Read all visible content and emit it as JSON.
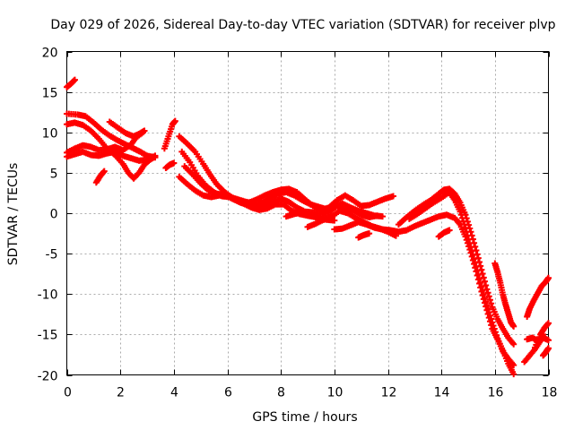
{
  "chart_data": {
    "type": "scatter",
    "title": "Day 029 of 2026, Sidereal Day-to-day VTEC variation (SDTVAR) for receiver plvp",
    "xlabel": "GPS time / hours",
    "ylabel": "SDTVAR / TECUs",
    "xlim": [
      0,
      18
    ],
    "ylim": [
      -20,
      20
    ],
    "xticks": [
      0,
      2,
      4,
      6,
      8,
      10,
      12,
      14,
      16,
      18
    ],
    "yticks": [
      -20,
      -15,
      -10,
      -5,
      0,
      5,
      10,
      15,
      20
    ],
    "grid": true,
    "marker": "+",
    "colors": {
      "series": "#ff0000",
      "axis": "#000000",
      "grid": "#aaaaaa"
    },
    "series": [
      {
        "name": "trace-1",
        "points": [
          [
            0.0,
            15.6
          ],
          [
            0.15,
            16.0
          ],
          [
            0.3,
            16.5
          ]
        ]
      },
      {
        "name": "trace-2",
        "points": [
          [
            0.0,
            12.3
          ],
          [
            0.4,
            12.2
          ],
          [
            0.7,
            12.0
          ],
          [
            1.0,
            11.2
          ],
          [
            1.3,
            10.3
          ],
          [
            1.6,
            9.6
          ],
          [
            1.9,
            9.0
          ],
          [
            2.2,
            8.5
          ],
          [
            2.5,
            8.0
          ],
          [
            2.75,
            7.6
          ],
          [
            3.0,
            7.1
          ],
          [
            3.3,
            6.9
          ]
        ]
      },
      {
        "name": "trace-3",
        "points": [
          [
            0.0,
            11.0
          ],
          [
            0.3,
            11.2
          ],
          [
            0.6,
            10.9
          ],
          [
            0.9,
            10.2
          ],
          [
            1.2,
            9.2
          ],
          [
            1.5,
            8.0
          ],
          [
            1.8,
            7.2
          ],
          [
            2.1,
            6.1
          ],
          [
            2.3,
            5.0
          ],
          [
            2.5,
            4.3
          ],
          [
            2.7,
            5.0
          ],
          [
            2.9,
            6.0
          ],
          [
            3.1,
            6.6
          ],
          [
            3.3,
            7.0
          ]
        ]
      },
      {
        "name": "trace-4",
        "points": [
          [
            0.0,
            7.5
          ],
          [
            0.3,
            8.0
          ],
          [
            0.6,
            8.4
          ],
          [
            0.9,
            8.2
          ],
          [
            1.2,
            7.8
          ],
          [
            1.5,
            7.9
          ],
          [
            1.8,
            8.2
          ],
          [
            2.1,
            7.8
          ],
          [
            2.4,
            8.5
          ],
          [
            2.6,
            9.4
          ],
          [
            2.85,
            10.0
          ]
        ]
      },
      {
        "name": "trace-5",
        "points": [
          [
            0.0,
            7.0
          ],
          [
            0.3,
            7.3
          ],
          [
            0.6,
            7.6
          ],
          [
            0.9,
            7.2
          ],
          [
            1.2,
            7.1
          ],
          [
            1.5,
            7.4
          ],
          [
            1.8,
            7.6
          ],
          [
            2.1,
            7.1
          ],
          [
            2.4,
            6.8
          ],
          [
            2.7,
            6.5
          ],
          [
            3.0,
            6.6
          ],
          [
            3.3,
            7.1
          ]
        ]
      },
      {
        "name": "trace-6",
        "points": [
          [
            1.6,
            11.3
          ],
          [
            1.9,
            10.6
          ],
          [
            2.2,
            9.9
          ],
          [
            2.5,
            9.5
          ],
          [
            2.7,
            9.8
          ],
          [
            2.9,
            10.2
          ]
        ]
      },
      {
        "name": "trace-7",
        "points": [
          [
            1.1,
            3.8
          ],
          [
            1.25,
            4.6
          ],
          [
            1.4,
            5.2
          ]
        ]
      },
      {
        "name": "trace-8",
        "points": [
          [
            3.65,
            8.0
          ],
          [
            3.8,
            9.5
          ],
          [
            3.95,
            11.0
          ],
          [
            4.05,
            11.4
          ]
        ]
      },
      {
        "name": "trace-9",
        "points": [
          [
            3.7,
            5.6
          ],
          [
            3.85,
            6.0
          ],
          [
            4.0,
            6.2
          ]
        ]
      },
      {
        "name": "trace-10",
        "points": [
          [
            4.2,
            9.5
          ],
          [
            4.5,
            8.6
          ],
          [
            4.8,
            7.6
          ],
          [
            5.1,
            6.1
          ],
          [
            5.35,
            4.8
          ],
          [
            5.6,
            3.6
          ],
          [
            5.9,
            2.6
          ],
          [
            6.2,
            1.9
          ],
          [
            6.5,
            1.5
          ],
          [
            6.8,
            1.3
          ],
          [
            7.1,
            1.7
          ],
          [
            7.4,
            2.2
          ],
          [
            7.7,
            2.6
          ],
          [
            8.0,
            2.9
          ],
          [
            8.3,
            3.0
          ],
          [
            8.6,
            2.6
          ],
          [
            8.9,
            1.7
          ],
          [
            9.2,
            0.9
          ],
          [
            9.5,
            0.4
          ],
          [
            9.8,
            0.7
          ],
          [
            10.1,
            1.6
          ],
          [
            10.4,
            2.2
          ],
          [
            10.7,
            1.6
          ],
          [
            11.0,
            0.9
          ],
          [
            11.3,
            1.0
          ],
          [
            11.6,
            1.4
          ],
          [
            11.9,
            1.8
          ],
          [
            12.2,
            2.1
          ]
        ]
      },
      {
        "name": "trace-11",
        "points": [
          [
            4.3,
            7.6
          ],
          [
            4.6,
            6.3
          ],
          [
            4.9,
            4.6
          ],
          [
            5.2,
            3.4
          ],
          [
            5.5,
            2.6
          ],
          [
            5.8,
            2.1
          ],
          [
            6.1,
            2.0
          ],
          [
            6.4,
            1.7
          ],
          [
            6.7,
            1.4
          ],
          [
            7.0,
            1.2
          ],
          [
            7.3,
            1.3
          ],
          [
            7.6,
            1.9
          ],
          [
            7.9,
            2.4
          ],
          [
            8.2,
            2.6
          ],
          [
            8.5,
            2.2
          ],
          [
            8.8,
            1.6
          ],
          [
            9.1,
            1.1
          ],
          [
            9.4,
            0.8
          ],
          [
            9.7,
            0.5
          ],
          [
            10.0,
            0.8
          ],
          [
            10.3,
            1.2
          ],
          [
            10.6,
            0.7
          ],
          [
            10.9,
            0.3
          ],
          [
            11.2,
            0.0
          ],
          [
            11.5,
            -0.3
          ],
          [
            11.8,
            -0.4
          ]
        ]
      },
      {
        "name": "trace-12",
        "points": [
          [
            4.4,
            5.8
          ],
          [
            4.7,
            4.8
          ],
          [
            5.0,
            3.7
          ],
          [
            5.3,
            2.8
          ],
          [
            5.6,
            2.4
          ],
          [
            5.9,
            2.3
          ],
          [
            6.2,
            1.8
          ],
          [
            6.5,
            1.3
          ],
          [
            6.8,
            1.0
          ],
          [
            7.1,
            0.8
          ],
          [
            7.4,
            1.0
          ],
          [
            7.7,
            1.4
          ],
          [
            8.0,
            1.8
          ],
          [
            8.3,
            1.4
          ],
          [
            8.6,
            0.7
          ],
          [
            8.9,
            0.2
          ],
          [
            9.2,
            0.1
          ],
          [
            9.5,
            -0.1
          ],
          [
            9.8,
            0.1
          ],
          [
            10.1,
            0.9
          ],
          [
            10.4,
            0.7
          ],
          [
            10.7,
            0.3
          ],
          [
            11.0,
            -0.2
          ],
          [
            11.3,
            -0.5
          ],
          [
            11.6,
            -0.3
          ]
        ]
      },
      {
        "name": "trace-13",
        "points": [
          [
            4.2,
            4.5
          ],
          [
            4.5,
            3.6
          ],
          [
            4.8,
            2.8
          ],
          [
            5.1,
            2.2
          ],
          [
            5.4,
            2.0
          ],
          [
            5.7,
            2.2
          ],
          [
            6.0,
            2.1
          ],
          [
            6.3,
            1.6
          ],
          [
            6.6,
            1.2
          ],
          [
            6.9,
            0.7
          ],
          [
            7.2,
            0.4
          ],
          [
            7.5,
            0.6
          ],
          [
            7.8,
            1.1
          ],
          [
            8.1,
            1.1
          ],
          [
            8.4,
            0.3
          ],
          [
            8.7,
            -0.1
          ],
          [
            9.0,
            -0.3
          ],
          [
            9.3,
            -0.5
          ],
          [
            9.6,
            -0.8
          ],
          [
            9.9,
            -0.4
          ],
          [
            10.2,
            0.3
          ],
          [
            10.5,
            0.0
          ],
          [
            10.8,
            -0.6
          ],
          [
            11.1,
            -1.1
          ],
          [
            11.4,
            -1.6
          ],
          [
            11.7,
            -1.9
          ],
          [
            12.0,
            -2.3
          ],
          [
            12.3,
            -2.8
          ]
        ]
      },
      {
        "name": "trace-14",
        "points": [
          [
            8.2,
            -0.4
          ],
          [
            8.5,
            -0.1
          ],
          [
            8.8,
            0.1
          ],
          [
            9.1,
            -0.2
          ],
          [
            9.4,
            -0.6
          ],
          [
            9.7,
            -0.8
          ],
          [
            10.0,
            -0.9
          ]
        ]
      },
      {
        "name": "trace-15",
        "points": [
          [
            9.0,
            -1.7
          ],
          [
            9.3,
            -1.3
          ],
          [
            9.6,
            -0.8
          ]
        ]
      },
      {
        "name": "trace-16",
        "points": [
          [
            10.0,
            -2.0
          ],
          [
            10.3,
            -1.9
          ],
          [
            10.6,
            -1.5
          ],
          [
            10.9,
            -1.1
          ],
          [
            11.2,
            -1.4
          ],
          [
            11.5,
            -1.8
          ],
          [
            11.8,
            -2.0
          ],
          [
            12.1,
            -2.1
          ],
          [
            12.4,
            -2.3
          ],
          [
            12.7,
            -2.1
          ],
          [
            13.0,
            -1.6
          ],
          [
            13.3,
            -1.2
          ],
          [
            13.6,
            -0.8
          ],
          [
            13.9,
            -0.4
          ],
          [
            14.2,
            -0.2
          ],
          [
            14.5,
            -0.6
          ],
          [
            14.7,
            -1.4
          ],
          [
            14.9,
            -2.9
          ],
          [
            15.1,
            -4.9
          ],
          [
            15.3,
            -7.2
          ],
          [
            15.5,
            -9.7
          ],
          [
            15.7,
            -12.0
          ],
          [
            15.9,
            -14.3
          ],
          [
            16.1,
            -15.6
          ],
          [
            16.3,
            -17.0
          ],
          [
            16.5,
            -18.6
          ],
          [
            16.7,
            -19.9
          ]
        ]
      },
      {
        "name": "trace-17",
        "points": [
          [
            12.4,
            -1.4
          ],
          [
            12.7,
            -0.5
          ],
          [
            13.0,
            0.3
          ],
          [
            13.3,
            1.0
          ],
          [
            13.6,
            1.6
          ],
          [
            13.9,
            2.4
          ],
          [
            14.1,
            2.9
          ],
          [
            14.3,
            3.0
          ],
          [
            14.5,
            2.4
          ],
          [
            14.7,
            1.3
          ],
          [
            14.9,
            -0.2
          ],
          [
            15.1,
            -2.3
          ],
          [
            15.3,
            -4.6
          ],
          [
            15.5,
            -7.0
          ],
          [
            15.7,
            -9.4
          ],
          [
            15.9,
            -11.6
          ],
          [
            16.1,
            -13.1
          ],
          [
            16.3,
            -14.3
          ],
          [
            16.5,
            -15.4
          ],
          [
            16.7,
            -16.2
          ]
        ]
      },
      {
        "name": "trace-18",
        "points": [
          [
            12.8,
            -0.7
          ],
          [
            13.1,
            -0.1
          ],
          [
            13.4,
            0.6
          ],
          [
            13.7,
            1.3
          ],
          [
            14.0,
            1.9
          ],
          [
            14.3,
            2.6
          ],
          [
            14.5,
            1.6
          ],
          [
            14.7,
            0.2
          ],
          [
            14.9,
            -1.8
          ],
          [
            15.1,
            -4.2
          ],
          [
            15.3,
            -6.6
          ],
          [
            15.5,
            -9.1
          ],
          [
            15.7,
            -11.4
          ],
          [
            15.9,
            -13.5
          ],
          [
            16.1,
            -15.5
          ],
          [
            16.3,
            -17.1
          ],
          [
            16.5,
            -18.0
          ],
          [
            16.7,
            -18.8
          ]
        ]
      },
      {
        "name": "trace-19",
        "points": [
          [
            10.9,
            -3.0
          ],
          [
            11.1,
            -2.7
          ],
          [
            11.3,
            -2.5
          ]
        ]
      },
      {
        "name": "trace-20",
        "points": [
          [
            13.9,
            -2.9
          ],
          [
            14.1,
            -2.4
          ],
          [
            14.3,
            -2.1
          ]
        ]
      },
      {
        "name": "trace-21",
        "points": [
          [
            16.0,
            -6.2
          ],
          [
            16.1,
            -7.3
          ],
          [
            16.2,
            -8.6
          ],
          [
            16.3,
            -10.1
          ],
          [
            16.4,
            -11.3
          ],
          [
            16.5,
            -12.4
          ],
          [
            16.6,
            -13.5
          ],
          [
            16.7,
            -14.0
          ]
        ]
      },
      {
        "name": "trace-22",
        "points": [
          [
            17.1,
            -18.4
          ],
          [
            17.3,
            -17.6
          ],
          [
            17.5,
            -16.8
          ],
          [
            17.7,
            -15.8
          ],
          [
            17.8,
            -15.0
          ]
        ]
      },
      {
        "name": "trace-23",
        "points": [
          [
            17.2,
            -15.6
          ],
          [
            17.4,
            -15.4
          ],
          [
            17.6,
            -15.8
          ],
          [
            17.8,
            -15.4
          ],
          [
            18.0,
            -15.7
          ]
        ]
      },
      {
        "name": "trace-24",
        "points": [
          [
            17.2,
            -12.8
          ],
          [
            17.3,
            -11.8
          ],
          [
            17.45,
            -10.8
          ],
          [
            17.6,
            -9.9
          ],
          [
            17.75,
            -9.0
          ],
          [
            17.9,
            -8.5
          ],
          [
            18.0,
            -8.0
          ]
        ]
      },
      {
        "name": "trace-25",
        "points": [
          [
            17.5,
            -16.6
          ],
          [
            17.7,
            -15.0
          ],
          [
            17.85,
            -14.2
          ],
          [
            18.0,
            -13.6
          ]
        ]
      },
      {
        "name": "trace-26",
        "points": [
          [
            17.8,
            -17.6
          ],
          [
            17.9,
            -17.2
          ],
          [
            18.0,
            -16.7
          ]
        ]
      }
    ]
  }
}
